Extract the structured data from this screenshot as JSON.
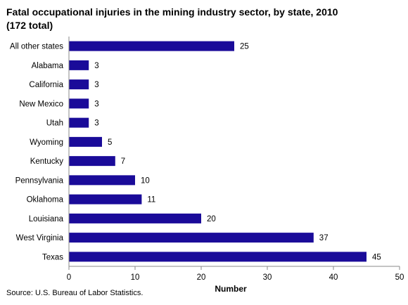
{
  "chart_data": {
    "type": "bar",
    "orientation": "horizontal",
    "title_lines": [
      "Fatal occupational injuries in the mining industry sector, by state, 2010",
      "(172 total)"
    ],
    "categories": [
      "All other states",
      "Alabama",
      "California",
      "New Mexico",
      "Utah",
      "Wyoming",
      "Kentucky",
      "Pennsylvania",
      "Oklahoma",
      "Louisiana",
      "West Virginia",
      "Texas"
    ],
    "values": [
      25,
      3,
      3,
      3,
      3,
      5,
      7,
      10,
      11,
      20,
      37,
      45
    ],
    "value_labels": [
      "25",
      "3",
      "3",
      "3",
      "3",
      "5",
      "7",
      "10",
      "11",
      "20",
      "37",
      "45"
    ],
    "xlabel": "Number",
    "ylabel": "",
    "xlim": [
      0,
      50
    ],
    "xticks": [
      "0",
      "10",
      "20",
      "30",
      "40",
      "50"
    ],
    "grid": false,
    "legend": "none",
    "bar_color": "#1a0b99",
    "axis_color": "#888888"
  },
  "source": "Source: U.S. Bureau of Labor Statistics."
}
